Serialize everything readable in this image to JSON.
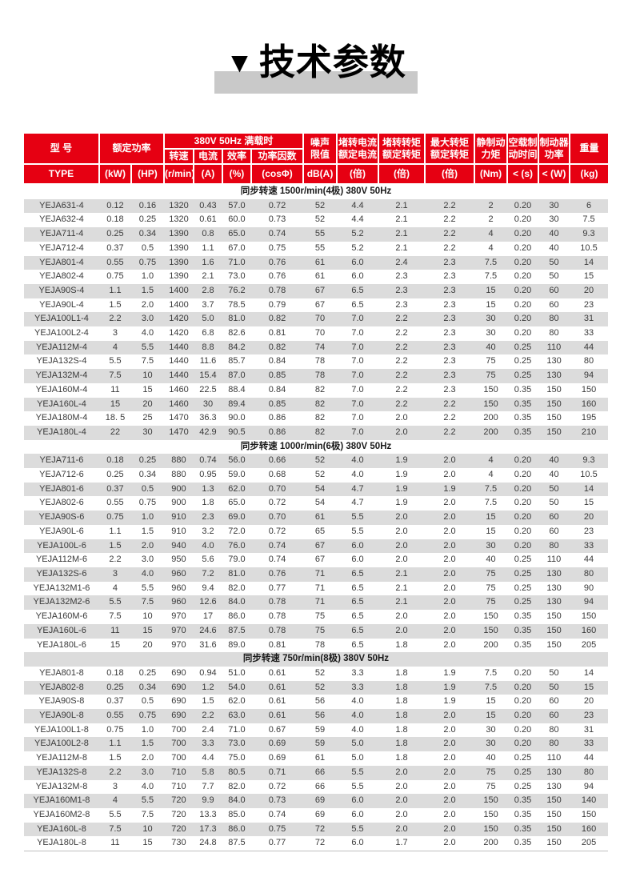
{
  "title": {
    "marker": "▼",
    "text": "技术参数"
  },
  "colors": {
    "header_red": "#e60012",
    "stripe_gray": "#dcdcdc",
    "title_band_gray": "#c9c9c9",
    "header_text": "#ffffff",
    "body_text": "#3a3a3a"
  },
  "table": {
    "header": {
      "model": {
        "label": "型 号",
        "unit": "TYPE"
      },
      "rated_power": {
        "label": "额定功率",
        "kw_unit": "(kW)",
        "hp_unit": "(HP)"
      },
      "full_load": {
        "label": "380V 50Hz 满载时",
        "speed": {
          "label": "转速",
          "unit": "(r/min)"
        },
        "current": {
          "label": "电流",
          "unit": "(A)"
        },
        "efficiency": {
          "label": "效率",
          "unit": "(%)"
        },
        "power_factor": {
          "label": "功率因数",
          "unit": "(cosΦ)"
        }
      },
      "noise": {
        "label": "噪声\n限值",
        "unit": "dB(A)"
      },
      "locked_rotor_current": {
        "label": "堵转电流\n额定电流",
        "unit": "(倍)"
      },
      "locked_rotor_torque": {
        "label": "堵转转矩\n额定转矩",
        "unit": "(倍)"
      },
      "max_torque": {
        "label": "最大转矩\n额定转矩",
        "unit": "(倍)"
      },
      "static_brake_torque": {
        "label": "静制动\n力矩",
        "unit": "(Nm)"
      },
      "no_load_brake_time": {
        "label": "空载制\n动时间",
        "unit": "< (s)"
      },
      "brake_power": {
        "label": "制动器\n功率",
        "unit": "< (W)"
      },
      "weight": {
        "label": "重量",
        "unit": "(kg)"
      }
    },
    "sections": [
      {
        "title": "同步转速 1500r/min(4极) 380V 50Hz",
        "rows": [
          [
            "YEJA631-4",
            "0.12",
            "0.16",
            "1320",
            "0.43",
            "57.0",
            "0.72",
            "52",
            "4.4",
            "2.1",
            "2.2",
            "2",
            "0.20",
            "30",
            "6"
          ],
          [
            "YEJA632-4",
            "0.18",
            "0.25",
            "1320",
            "0.61",
            "60.0",
            "0.73",
            "52",
            "4.4",
            "2.1",
            "2.2",
            "2",
            "0.20",
            "30",
            "7.5"
          ],
          [
            "YEJA711-4",
            "0.25",
            "0.34",
            "1390",
            "0.8",
            "65.0",
            "0.74",
            "55",
            "5.2",
            "2.1",
            "2.2",
            "4",
            "0.20",
            "40",
            "9.3"
          ],
          [
            "YEJA712-4",
            "0.37",
            "0.5",
            "1390",
            "1.1",
            "67.0",
            "0.75",
            "55",
            "5.2",
            "2.1",
            "2.2",
            "4",
            "0.20",
            "40",
            "10.5"
          ],
          [
            "YEJA801-4",
            "0.55",
            "0.75",
            "1390",
            "1.6",
            "71.0",
            "0.76",
            "61",
            "6.0",
            "2.4",
            "2.3",
            "7.5",
            "0.20",
            "50",
            "14"
          ],
          [
            "YEJA802-4",
            "0.75",
            "1.0",
            "1390",
            "2.1",
            "73.0",
            "0.76",
            "61",
            "6.0",
            "2.3",
            "2.3",
            "7.5",
            "0.20",
            "50",
            "15"
          ],
          [
            "YEJA90S-4",
            "1.1",
            "1.5",
            "1400",
            "2.8",
            "76.2",
            "0.78",
            "67",
            "6.5",
            "2.3",
            "2.3",
            "15",
            "0.20",
            "60",
            "20"
          ],
          [
            "YEJA90L-4",
            "1.5",
            "2.0",
            "1400",
            "3.7",
            "78.5",
            "0.79",
            "67",
            "6.5",
            "2.3",
            "2.3",
            "15",
            "0.20",
            "60",
            "23"
          ],
          [
            "YEJA100L1-4",
            "2.2",
            "3.0",
            "1420",
            "5.0",
            "81.0",
            "0.82",
            "70",
            "7.0",
            "2.2",
            "2.3",
            "30",
            "0.20",
            "80",
            "31"
          ],
          [
            "YEJA100L2-4",
            "3",
            "4.0",
            "1420",
            "6.8",
            "82.6",
            "0.81",
            "70",
            "7.0",
            "2.2",
            "2.3",
            "30",
            "0.20",
            "80",
            "33"
          ],
          [
            "YEJA112M-4",
            "4",
            "5.5",
            "1440",
            "8.8",
            "84.2",
            "0.82",
            "74",
            "7.0",
            "2.2",
            "2.3",
            "40",
            "0.25",
            "110",
            "44"
          ],
          [
            "YEJA132S-4",
            "5.5",
            "7.5",
            "1440",
            "11.6",
            "85.7",
            "0.84",
            "78",
            "7.0",
            "2.2",
            "2.3",
            "75",
            "0.25",
            "130",
            "80"
          ],
          [
            "YEJA132M-4",
            "7.5",
            "10",
            "1440",
            "15.4",
            "87.0",
            "0.85",
            "78",
            "7.0",
            "2.2",
            "2.3",
            "75",
            "0.25",
            "130",
            "94"
          ],
          [
            "YEJA160M-4",
            "11",
            "15",
            "1460",
            "22.5",
            "88.4",
            "0.84",
            "82",
            "7.0",
            "2.2",
            "2.3",
            "150",
            "0.35",
            "150",
            "150"
          ],
          [
            "YEJA160L-4",
            "15",
            "20",
            "1460",
            "30",
            "89.4",
            "0.85",
            "82",
            "7.0",
            "2.2",
            "2.2",
            "150",
            "0.35",
            "150",
            "160"
          ],
          [
            "YEJA180M-4",
            "18. 5",
            "25",
            "1470",
            "36.3",
            "90.0",
            "0.86",
            "82",
            "7.0",
            "2.0",
            "2.2",
            "200",
            "0.35",
            "150",
            "195"
          ],
          [
            "YEJA180L-4",
            "22",
            "30",
            "1470",
            "42.9",
            "90.5",
            "0.86",
            "82",
            "7.0",
            "2.0",
            "2.2",
            "200",
            "0.35",
            "150",
            "210"
          ]
        ]
      },
      {
        "title": "同步转速 1000r/min(6极) 380V 50Hz",
        "rows": [
          [
            "YEJA711-6",
            "0.18",
            "0.25",
            "880",
            "0.74",
            "56.0",
            "0.66",
            "52",
            "4.0",
            "1.9",
            "2.0",
            "4",
            "0.20",
            "40",
            "9.3"
          ],
          [
            "YEJA712-6",
            "0.25",
            "0.34",
            "880",
            "0.95",
            "59.0",
            "0.68",
            "52",
            "4.0",
            "1.9",
            "2.0",
            "4",
            "0.20",
            "40",
            "10.5"
          ],
          [
            "YEJA801-6",
            "0.37",
            "0.5",
            "900",
            "1.3",
            "62.0",
            "0.70",
            "54",
            "4.7",
            "1.9",
            "1.9",
            "7.5",
            "0.20",
            "50",
            "14"
          ],
          [
            "YEJA802-6",
            "0.55",
            "0.75",
            "900",
            "1.8",
            "65.0",
            "0.72",
            "54",
            "4.7",
            "1.9",
            "2.0",
            "7.5",
            "0.20",
            "50",
            "15"
          ],
          [
            "YEJA90S-6",
            "0.75",
            "1.0",
            "910",
            "2.3",
            "69.0",
            "0.70",
            "61",
            "5.5",
            "2.0",
            "2.0",
            "15",
            "0.20",
            "60",
            "20"
          ],
          [
            "YEJA90L-6",
            "1.1",
            "1.5",
            "910",
            "3.2",
            "72.0",
            "0.72",
            "65",
            "5.5",
            "2.0",
            "2.0",
            "15",
            "0.20",
            "60",
            "23"
          ],
          [
            "YEJA100L-6",
            "1.5",
            "2.0",
            "940",
            "4.0",
            "76.0",
            "0.74",
            "67",
            "6.0",
            "2.0",
            "2.0",
            "30",
            "0.20",
            "80",
            "33"
          ],
          [
            "YEJA112M-6",
            "2.2",
            "3.0",
            "950",
            "5.6",
            "79.0",
            "0.74",
            "67",
            "6.0",
            "2.0",
            "2.0",
            "40",
            "0.25",
            "110",
            "44"
          ],
          [
            "YEJA132S-6",
            "3",
            "4.0",
            "960",
            "7.2",
            "81.0",
            "0.76",
            "71",
            "6.5",
            "2.1",
            "2.0",
            "75",
            "0.25",
            "130",
            "80"
          ],
          [
            "YEJA132M1-6",
            "4",
            "5.5",
            "960",
            "9.4",
            "82.0",
            "0.77",
            "71",
            "6.5",
            "2.1",
            "2.0",
            "75",
            "0.25",
            "130",
            "90"
          ],
          [
            "YEJA132M2-6",
            "5.5",
            "7.5",
            "960",
            "12.6",
            "84.0",
            "0.78",
            "71",
            "6.5",
            "2.1",
            "2.0",
            "75",
            "0.25",
            "130",
            "94"
          ],
          [
            "YEJA160M-6",
            "7.5",
            "10",
            "970",
            "17",
            "86.0",
            "0.78",
            "75",
            "6.5",
            "2.0",
            "2.0",
            "150",
            "0.35",
            "150",
            "150"
          ],
          [
            "YEJA160L-6",
            "11",
            "15",
            "970",
            "24.6",
            "87.5",
            "0.78",
            "75",
            "6.5",
            "2.0",
            "2.0",
            "150",
            "0.35",
            "150",
            "160"
          ],
          [
            "YEJA180L-6",
            "15",
            "20",
            "970",
            "31.6",
            "89.0",
            "0.81",
            "78",
            "6.5",
            "1.8",
            "2.0",
            "200",
            "0.35",
            "150",
            "205"
          ]
        ]
      },
      {
        "title": "同步转速 750r/min(8极) 380V 50Hz",
        "rows": [
          [
            "YEJA801-8",
            "0.18",
            "0.25",
            "690",
            "0.94",
            "51.0",
            "0.61",
            "52",
            "3.3",
            "1.8",
            "1.9",
            "7.5",
            "0.20",
            "50",
            "14"
          ],
          [
            "YEJA802-8",
            "0.25",
            "0.34",
            "690",
            "1.2",
            "54.0",
            "0.61",
            "52",
            "3.3",
            "1.8",
            "1.9",
            "7.5",
            "0.20",
            "50",
            "15"
          ],
          [
            "YEJA90S-8",
            "0.37",
            "0.5",
            "690",
            "1.5",
            "62.0",
            "0.61",
            "56",
            "4.0",
            "1.8",
            "1.9",
            "15",
            "0.20",
            "60",
            "20"
          ],
          [
            "YEJA90L-8",
            "0.55",
            "0.75",
            "690",
            "2.2",
            "63.0",
            "0.61",
            "56",
            "4.0",
            "1.8",
            "2.0",
            "15",
            "0.20",
            "60",
            "23"
          ],
          [
            "YEJA100L1-8",
            "0.75",
            "1.0",
            "700",
            "2.4",
            "71.0",
            "0.67",
            "59",
            "4.0",
            "1.8",
            "2.0",
            "30",
            "0.20",
            "80",
            "31"
          ],
          [
            "YEJA100L2-8",
            "1.1",
            "1.5",
            "700",
            "3.3",
            "73.0",
            "0.69",
            "59",
            "5.0",
            "1.8",
            "2.0",
            "30",
            "0.20",
            "80",
            "33"
          ],
          [
            "YEJA112M-8",
            "1.5",
            "2.0",
            "700",
            "4.4",
            "75.0",
            "0.69",
            "61",
            "5.0",
            "1.8",
            "2.0",
            "40",
            "0.25",
            "110",
            "44"
          ],
          [
            "YEJA132S-8",
            "2.2",
            "3.0",
            "710",
            "5.8",
            "80.5",
            "0.71",
            "66",
            "5.5",
            "2.0",
            "2.0",
            "75",
            "0.25",
            "130",
            "80"
          ],
          [
            "YEJA132M-8",
            "3",
            "4.0",
            "710",
            "7.7",
            "82.0",
            "0.72",
            "66",
            "5.5",
            "2.0",
            "2.0",
            "75",
            "0.25",
            "130",
            "94"
          ],
          [
            "YEJA160M1-8",
            "4",
            "5.5",
            "720",
            "9.9",
            "84.0",
            "0.73",
            "69",
            "6.0",
            "2.0",
            "2.0",
            "150",
            "0.35",
            "150",
            "140"
          ],
          [
            "YEJA160M2-8",
            "5.5",
            "7.5",
            "720",
            "13.3",
            "85.0",
            "0.74",
            "69",
            "6.0",
            "2.0",
            "2.0",
            "150",
            "0.35",
            "150",
            "150"
          ],
          [
            "YEJA160L-8",
            "7.5",
            "10",
            "720",
            "17.3",
            "86.0",
            "0.75",
            "72",
            "5.5",
            "2.0",
            "2.0",
            "150",
            "0.35",
            "150",
            "160"
          ],
          [
            "YEJA180L-8",
            "11",
            "15",
            "730",
            "24.8",
            "87.5",
            "0.77",
            "72",
            "6.0",
            "1.7",
            "2.0",
            "200",
            "0.35",
            "150",
            "205"
          ]
        ]
      }
    ]
  }
}
